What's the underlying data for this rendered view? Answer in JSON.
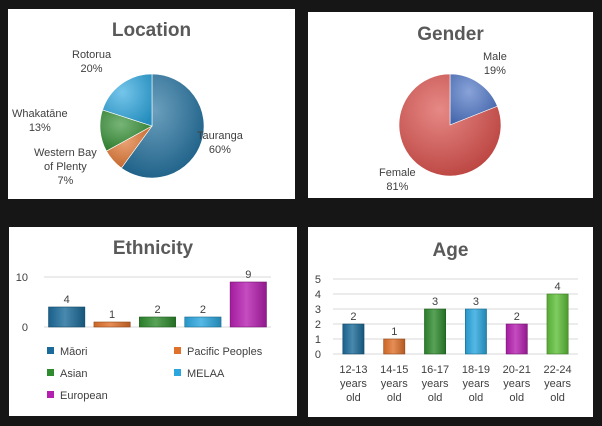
{
  "chart_data": [
    {
      "id": "location",
      "type": "pie",
      "title": "Location",
      "slices": [
        {
          "label": "Tauranga",
          "value": 60,
          "value_label": "60%",
          "color": "#1B6B9A"
        },
        {
          "label": "Western Bay\nof Plenty",
          "value": 7,
          "value_label": "7%",
          "color": "#E0712A"
        },
        {
          "label": "Whakatāne",
          "value": 13,
          "value_label": "13%",
          "color": "#2E8B2E"
        },
        {
          "label": "Rotorua",
          "value": 20,
          "value_label": "20%",
          "color": "#2BA6DE"
        }
      ]
    },
    {
      "id": "gender",
      "type": "pie",
      "title": "Gender",
      "slices": [
        {
          "label": "Male",
          "value": 19,
          "value_label": "19%",
          "color": "#4A72C4"
        },
        {
          "label": "Female",
          "value": 81,
          "value_label": "81%",
          "color": "#D94A45"
        }
      ]
    },
    {
      "id": "ethnicity",
      "type": "bar",
      "title": "Ethnicity",
      "categories": [
        "Māori",
        "Pacific Peoples",
        "Asian",
        "MELAA",
        "European"
      ],
      "values": [
        4,
        1,
        2,
        2,
        9
      ],
      "colors": [
        "#1B6B9A",
        "#E0712A",
        "#2E8B2E",
        "#2BA6DE",
        "#B51FB0"
      ],
      "yticks": [
        0,
        10
      ],
      "ylim": [
        0,
        10
      ],
      "legend": "bottom"
    },
    {
      "id": "age",
      "type": "bar",
      "title": "Age",
      "categories": [
        "12-13\nyears\nold",
        "14-15\nyears\nold",
        "16-17\nyears\nold",
        "18-19\nyears\nold",
        "20-21\nyears\nold",
        "22-24\nyears\nold"
      ],
      "values": [
        2,
        1,
        3,
        3,
        2,
        4
      ],
      "colors": [
        "#1B6B9A",
        "#E0712A",
        "#2E8B2E",
        "#2BA6DE",
        "#B51FB0",
        "#5FBF3A"
      ],
      "yticks": [
        0,
        1,
        2,
        3,
        4,
        5
      ],
      "ylim": [
        0,
        5
      ]
    }
  ]
}
